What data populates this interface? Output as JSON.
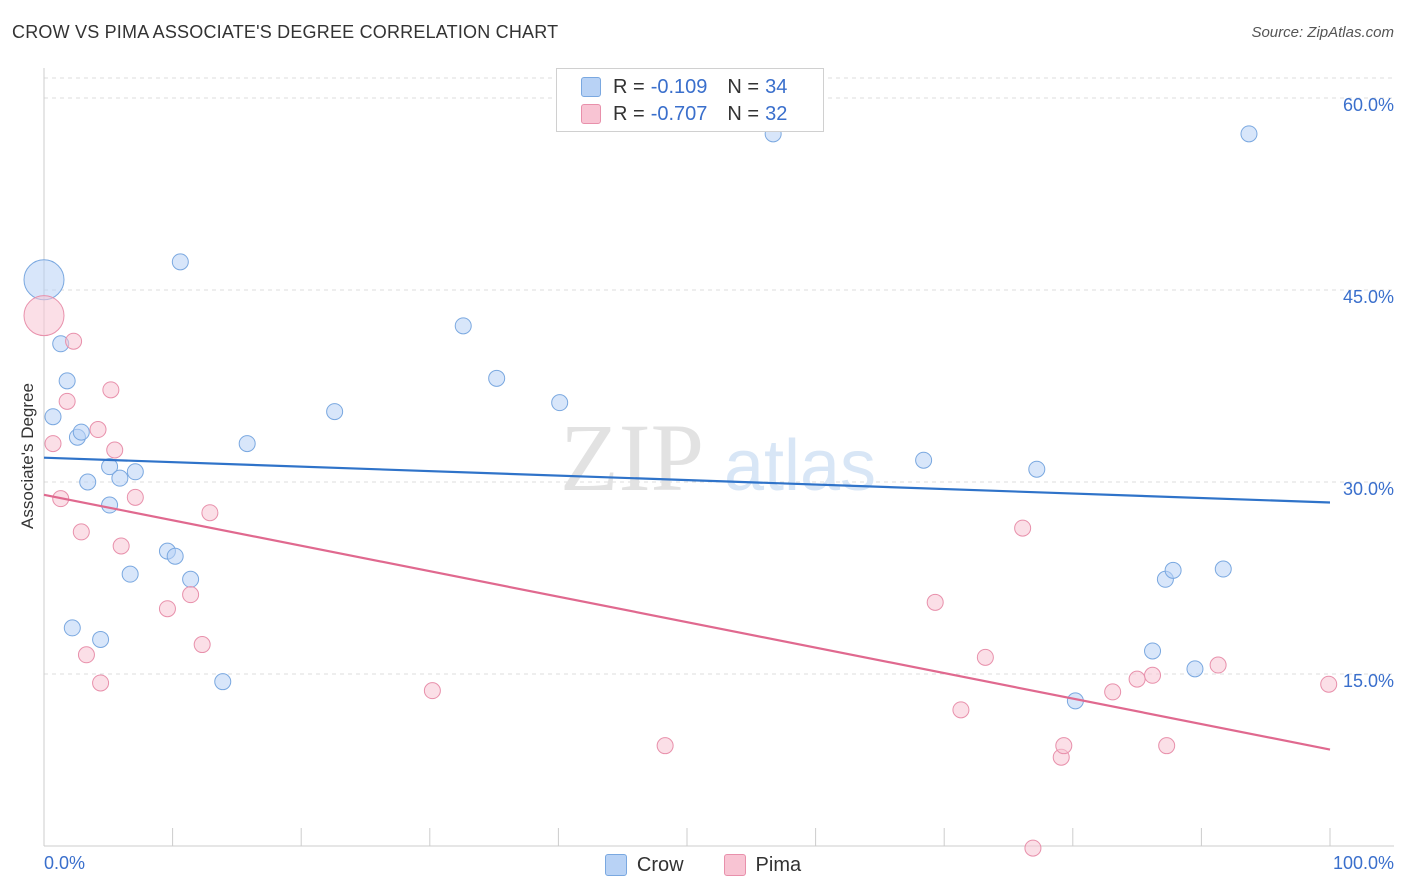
{
  "title": "CROW VS PIMA ASSOCIATE'S DEGREE CORRELATION CHART",
  "source": "Source: ZipAtlas.com",
  "watermark": {
    "zip": "ZIP",
    "atlas": "atlas"
  },
  "colors": {
    "crow_fill": "#b8d2f5",
    "crow_stroke": "#7aa8e0",
    "crow_line": "#2f73c9",
    "pima_fill": "#f8c4d3",
    "pima_stroke": "#e890ab",
    "pima_line": "#e0698f",
    "tick_text": "#3a6fcc",
    "grid": "#dddddd"
  },
  "legend": {
    "rows": [
      {
        "r_label": "R =",
        "r_value": "-0.109",
        "n_label": "N =",
        "n_value": "34"
      },
      {
        "r_label": "R =",
        "r_value": "-0.707",
        "n_label": "N =",
        "n_value": "32"
      }
    ]
  },
  "bottom_legend": {
    "crow": "Crow",
    "pima": "Pima"
  },
  "chart_data": {
    "type": "scatter",
    "title": "CROW VS PIMA ASSOCIATE'S DEGREE CORRELATION CHART",
    "xlabel": "",
    "ylabel": "Associate's Degree",
    "xlim": [
      0,
      100
    ],
    "ylim": [
      0,
      60
    ],
    "x_tick_labels": {
      "left": "0.0%",
      "right": "100.0%"
    },
    "y_ticks": [
      {
        "value": 15,
        "label": "15.0%"
      },
      {
        "value": 30,
        "label": "30.0%"
      },
      {
        "value": 45,
        "label": "45.0%"
      },
      {
        "value": 60,
        "label": "60.0%"
      }
    ],
    "series": [
      {
        "name": "Crow",
        "trend": {
          "x": [
            0,
            100
          ],
          "y": [
            31.9,
            28.4
          ]
        },
        "points": [
          {
            "x": 0.0,
            "y": 45.8,
            "big": true
          },
          {
            "x": 0.7,
            "y": 35.1
          },
          {
            "x": 1.3,
            "y": 40.8
          },
          {
            "x": 1.8,
            "y": 37.9
          },
          {
            "x": 2.2,
            "y": 18.6
          },
          {
            "x": 2.6,
            "y": 33.5
          },
          {
            "x": 2.9,
            "y": 33.9
          },
          {
            "x": 3.4,
            "y": 30.0
          },
          {
            "x": 4.4,
            "y": 17.7
          },
          {
            "x": 5.1,
            "y": 31.2
          },
          {
            "x": 5.1,
            "y": 28.2
          },
          {
            "x": 5.9,
            "y": 30.3
          },
          {
            "x": 6.7,
            "y": 22.8
          },
          {
            "x": 7.1,
            "y": 30.8
          },
          {
            "x": 9.6,
            "y": 24.6
          },
          {
            "x": 10.2,
            "y": 24.2
          },
          {
            "x": 10.6,
            "y": 47.2
          },
          {
            "x": 11.4,
            "y": 22.4
          },
          {
            "x": 13.9,
            "y": 14.4
          },
          {
            "x": 15.8,
            "y": 33.0
          },
          {
            "x": 22.6,
            "y": 35.5
          },
          {
            "x": 32.6,
            "y": 42.2
          },
          {
            "x": 35.2,
            "y": 38.1
          },
          {
            "x": 40.1,
            "y": 36.2
          },
          {
            "x": 56.7,
            "y": 57.2
          },
          {
            "x": 68.4,
            "y": 31.7
          },
          {
            "x": 77.2,
            "y": 31.0
          },
          {
            "x": 80.2,
            "y": 12.9
          },
          {
            "x": 86.2,
            "y": 16.8
          },
          {
            "x": 87.2,
            "y": 22.4
          },
          {
            "x": 87.8,
            "y": 23.1
          },
          {
            "x": 89.5,
            "y": 15.4
          },
          {
            "x": 91.7,
            "y": 23.2
          },
          {
            "x": 93.7,
            "y": 57.2
          }
        ]
      },
      {
        "name": "Pima",
        "trend": {
          "x": [
            0,
            100
          ],
          "y": [
            29.0,
            9.1
          ]
        },
        "points": [
          {
            "x": 0.0,
            "y": 43.0,
            "big": true
          },
          {
            "x": 0.7,
            "y": 33.0
          },
          {
            "x": 1.3,
            "y": 28.7
          },
          {
            "x": 1.8,
            "y": 36.3
          },
          {
            "x": 2.3,
            "y": 41.0
          },
          {
            "x": 2.9,
            "y": 26.1
          },
          {
            "x": 3.3,
            "y": 16.5
          },
          {
            "x": 4.2,
            "y": 34.1
          },
          {
            "x": 4.4,
            "y": 14.3
          },
          {
            "x": 5.2,
            "y": 37.2
          },
          {
            "x": 5.5,
            "y": 32.5
          },
          {
            "x": 6.0,
            "y": 25.0
          },
          {
            "x": 7.1,
            "y": 28.8
          },
          {
            "x": 9.6,
            "y": 20.1
          },
          {
            "x": 11.4,
            "y": 21.2
          },
          {
            "x": 12.3,
            "y": 17.3
          },
          {
            "x": 12.9,
            "y": 27.6
          },
          {
            "x": 30.2,
            "y": 13.7
          },
          {
            "x": 48.3,
            "y": 9.4
          },
          {
            "x": 69.3,
            "y": 20.6
          },
          {
            "x": 71.3,
            "y": 12.2
          },
          {
            "x": 73.2,
            "y": 16.3
          },
          {
            "x": 76.1,
            "y": 26.4
          },
          {
            "x": 76.9,
            "y": 1.4
          },
          {
            "x": 79.1,
            "y": 8.5
          },
          {
            "x": 79.3,
            "y": 9.4
          },
          {
            "x": 83.1,
            "y": 13.6
          },
          {
            "x": 85.0,
            "y": 14.6
          },
          {
            "x": 86.2,
            "y": 14.9
          },
          {
            "x": 87.3,
            "y": 9.4
          },
          {
            "x": 91.3,
            "y": 15.7
          },
          {
            "x": 99.9,
            "y": 14.2
          }
        ]
      }
    ]
  }
}
